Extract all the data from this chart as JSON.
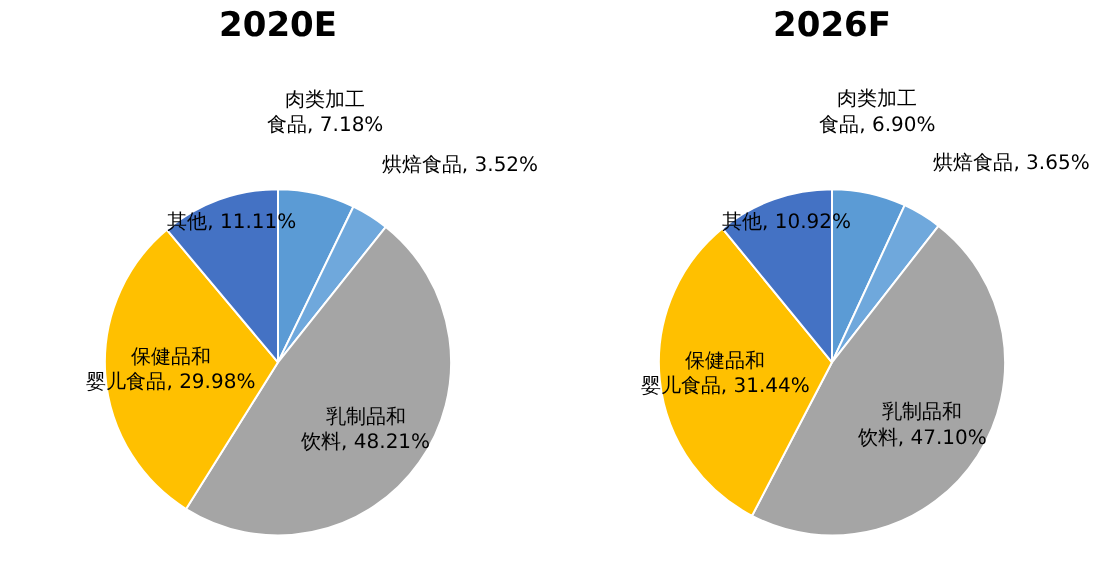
{
  "chart_data": [
    {
      "type": "pie",
      "title": "2020E",
      "categories": [
        "肉类加工食品",
        "烘焙食品",
        "乳制品和饮料",
        "保健品和婴儿食品",
        "其他"
      ],
      "values": [
        7.18,
        3.52,
        48.21,
        29.98,
        11.11
      ],
      "value_labels": [
        "7.18%",
        "3.52%",
        "48.21%",
        "29.98%",
        "11.11%"
      ],
      "colors": [
        "#5b9bd5",
        "#6fa8dc",
        "#a5a5a5",
        "#ffc000",
        "#4472c4"
      ]
    },
    {
      "type": "pie",
      "title": "2026F",
      "categories": [
        "肉类加工食品",
        "烘焙食品",
        "乳制品和饮料",
        "保健品和婴儿食品",
        "其他"
      ],
      "values": [
        6.9,
        3.65,
        47.1,
        31.44,
        10.92
      ],
      "value_labels": [
        "6.90%",
        "3.65%",
        "47.10%",
        "31.44%",
        "10.92%"
      ],
      "colors": [
        "#5b9bd5",
        "#6fa8dc",
        "#a5a5a5",
        "#ffc000",
        "#4472c4"
      ]
    }
  ]
}
